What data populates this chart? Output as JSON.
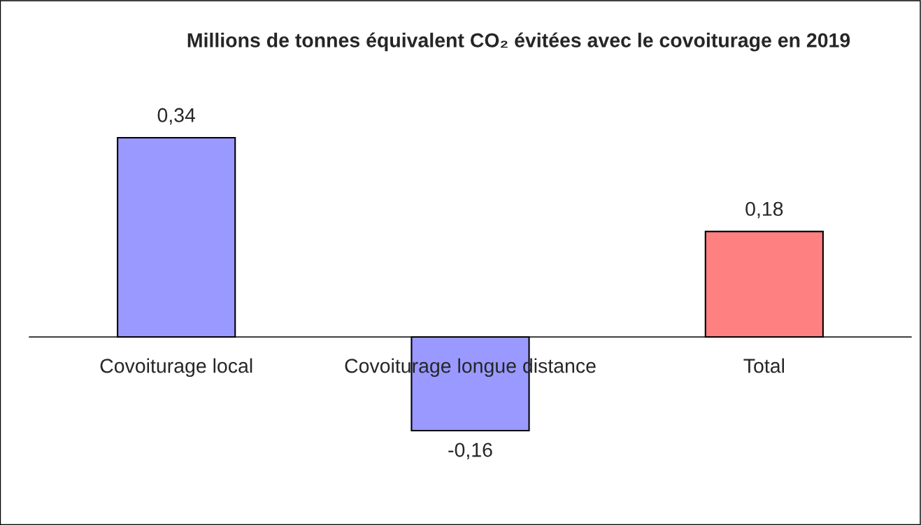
{
  "chart_data": {
    "type": "bar",
    "title": "Millions de tonnes équivalent CO₂ évitées avec le covoiturage en 2019",
    "categories": [
      "Covoiturage local",
      "Covoiturage longue distance",
      "Total"
    ],
    "values": [
      0.34,
      -0.16,
      0.18
    ],
    "colors": [
      "#9999ff",
      "#9999ff",
      "#ff8080"
    ],
    "value_labels": [
      "0,34",
      "-0,16",
      "0,18"
    ],
    "grid": false,
    "legend": false
  }
}
